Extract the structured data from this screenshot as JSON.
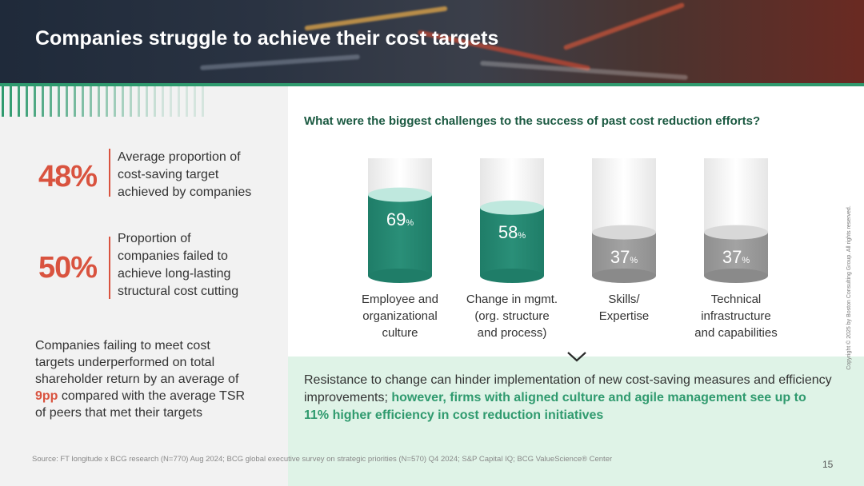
{
  "header": {
    "title": "Companies struggle to achieve their cost targets"
  },
  "stats": [
    {
      "value": "48%",
      "text_lines": [
        "Average proportion of",
        "cost-saving target",
        "achieved by companies"
      ]
    },
    {
      "value": "50%",
      "text_lines": [
        "Proportion of",
        "companies failed to",
        "achieve long-lasting",
        "structural cost cutting"
      ]
    }
  ],
  "tsr": {
    "line1": "Companies failing to meet cost",
    "line2": "targets underperformed on total",
    "line3": "shareholder return by an average of",
    "highlight": "9pp",
    "line4_rest": " compared with the average TSR",
    "line5": "of peers that met their targets"
  },
  "colors": {
    "accent_red": "#d9533f",
    "accent_green": "#2f9a6e",
    "teal": "#2a8f78",
    "grey": "#a3a3a3"
  },
  "chart_data": {
    "type": "bar",
    "title": "What were the biggest challenges to the success of past cost reduction efforts?",
    "unit": "%",
    "categories": [
      "Employee and organizational culture",
      "Change in mgmt. (org. structure and process)",
      "Skills/ Expertise",
      "Technical infrastructure and capabilities"
    ],
    "category_lines": [
      [
        "Employee and",
        "organizational",
        "culture"
      ],
      [
        "Change in mgmt.",
        "(org. structure",
        "and process)"
      ],
      [
        "Skills/",
        "Expertise"
      ],
      [
        "Technical",
        "infrastructure",
        "and capabilities"
      ]
    ],
    "values": [
      69,
      58,
      37,
      37
    ],
    "highlighted": [
      true,
      true,
      false,
      false
    ],
    "ylim": [
      0,
      100
    ]
  },
  "takeaway": {
    "normal": "Resistance to change can hinder implementation of new cost-saving measures and efficiency improvements; ",
    "highlight": "however, firms with aligned culture and agile management see up to 11% higher efficiency in cost reduction initiatives"
  },
  "footer": {
    "source": "Source: FT longitude x BCG research (N=770) Aug 2024; BCG global executive survey on strategic priorities (N=570) Q4 2024; S&P Capital IQ; BCG ValueScience® Center",
    "page": "15",
    "copyright": "Copyright © 2025 by Boston Consulting Group. All rights reserved."
  }
}
